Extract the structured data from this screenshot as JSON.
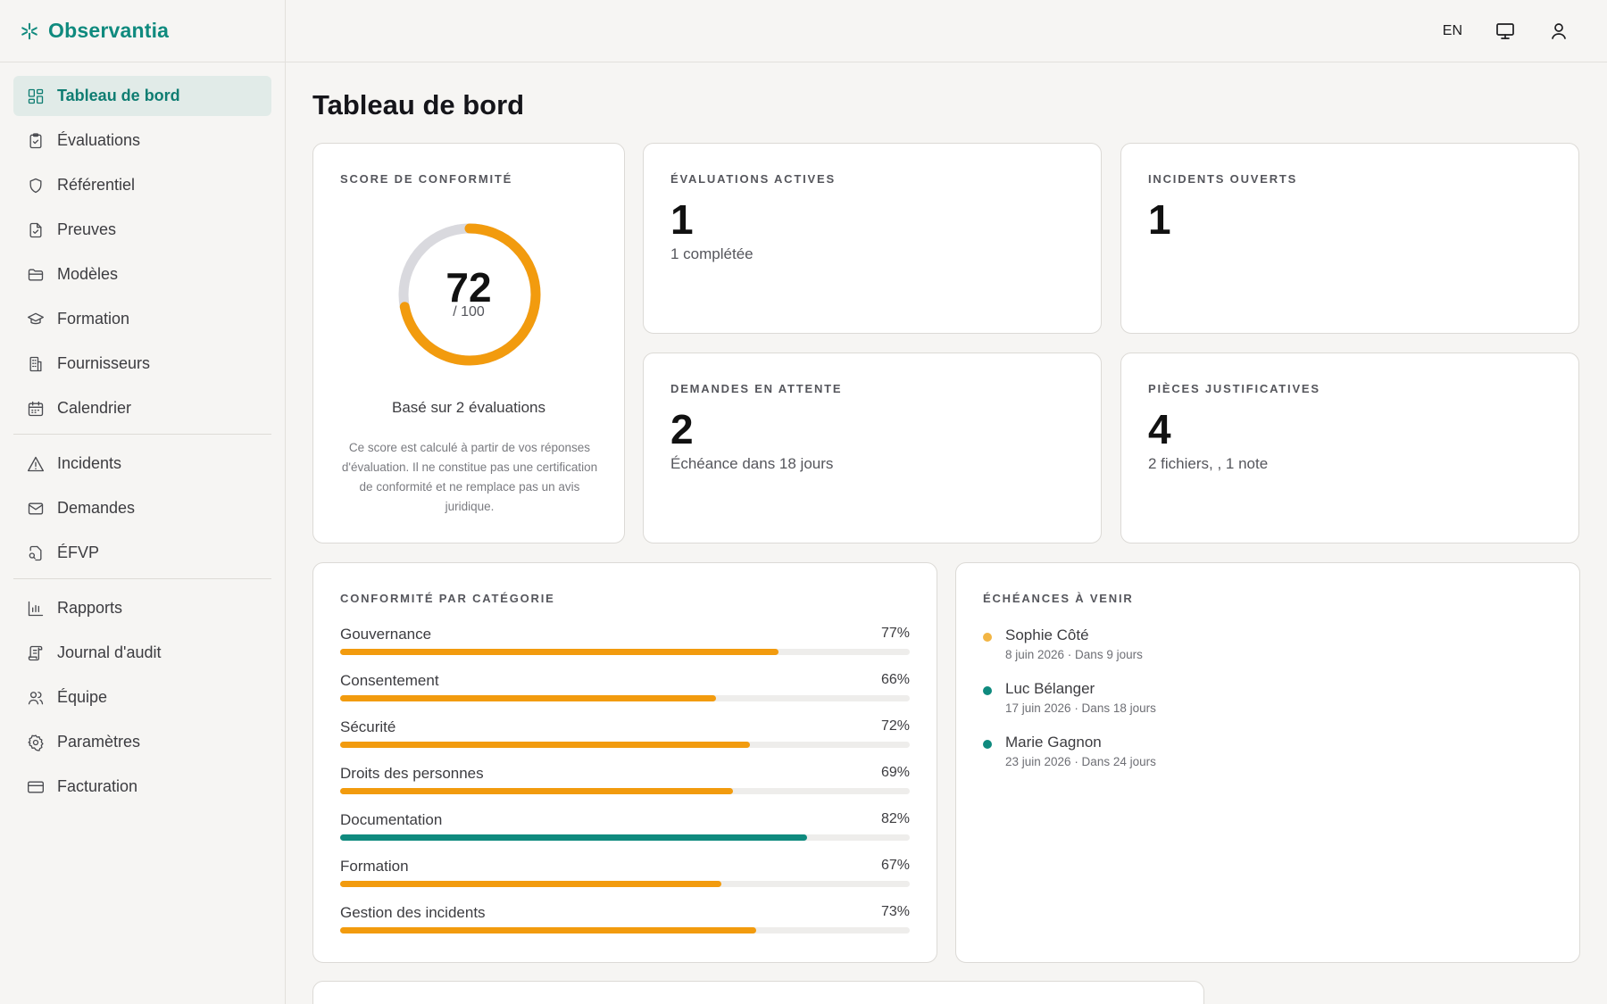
{
  "brand": {
    "name": "Observantia"
  },
  "topbar": {
    "lang": "EN"
  },
  "sidebar": {
    "groups": [
      [
        {
          "label": "Tableau de bord",
          "icon": "dashboard-icon",
          "active": true
        },
        {
          "label": "Évaluations",
          "icon": "clipboard-icon"
        },
        {
          "label": "Référentiel",
          "icon": "shield-icon"
        },
        {
          "label": "Preuves",
          "icon": "file-check-icon"
        },
        {
          "label": "Modèles",
          "icon": "folder-icon"
        },
        {
          "label": "Formation",
          "icon": "graduation-cap-icon"
        },
        {
          "label": "Fournisseurs",
          "icon": "building-icon"
        },
        {
          "label": "Calendrier",
          "icon": "calendar-icon"
        }
      ],
      [
        {
          "label": "Incidents",
          "icon": "warning-icon"
        },
        {
          "label": "Demandes",
          "icon": "mail-icon"
        },
        {
          "label": "ÉFVP",
          "icon": "file-search-icon"
        }
      ],
      [
        {
          "label": "Rapports",
          "icon": "bar-chart-icon"
        },
        {
          "label": "Journal d'audit",
          "icon": "scroll-icon"
        },
        {
          "label": "Équipe",
          "icon": "users-icon"
        },
        {
          "label": "Paramètres",
          "icon": "gear-icon"
        },
        {
          "label": "Facturation",
          "icon": "credit-card-icon"
        }
      ]
    ]
  },
  "page": {
    "title": "Tableau de bord"
  },
  "score": {
    "label": "SCORE DE CONFORMITÉ",
    "value": "72",
    "max": "/ 100",
    "fraction": 0.72,
    "basis": "Basé sur 2 évaluations",
    "note": "Ce score est calculé à partir de vos réponses d'évaluation. Il ne constitue pas une certification de conformité et ne remplace pas un avis juridique."
  },
  "stats": {
    "evaluations": {
      "label": "ÉVALUATIONS ACTIVES",
      "value": "1",
      "sub": "1 complétée"
    },
    "incidents": {
      "label": "INCIDENTS OUVERTS",
      "value": "1"
    },
    "demandes": {
      "label": "DEMANDES EN ATTENTE",
      "value": "2",
      "sub": "Échéance dans 18 jours"
    },
    "pieces": {
      "label": "PIÈCES JUSTIFICATIVES",
      "value": "4",
      "sub": "2 fichiers, , 1 note"
    }
  },
  "categories": {
    "label": "CONFORMITÉ PAR CATÉGORIE",
    "items": [
      {
        "name": "Gouvernance",
        "pct": "77%",
        "value": 77
      },
      {
        "name": "Consentement",
        "pct": "66%",
        "value": 66
      },
      {
        "name": "Sécurité",
        "pct": "72%",
        "value": 72
      },
      {
        "name": "Droits des personnes",
        "pct": "69%",
        "value": 69
      },
      {
        "name": "Documentation",
        "pct": "82%",
        "value": 82
      },
      {
        "name": "Formation",
        "pct": "67%",
        "value": 67
      },
      {
        "name": "Gestion des incidents",
        "pct": "73%",
        "value": 73
      }
    ]
  },
  "deadlines": {
    "label": "ÉCHÉANCES À VENIR",
    "items": [
      {
        "name": "Sophie Côté",
        "meta": "8 juin 2026 · Dans 9 jours",
        "color": "#f2b544"
      },
      {
        "name": "Luc Bélanger",
        "meta": "17 juin 2026 · Dans 18 jours",
        "color": "#0f8a7e"
      },
      {
        "name": "Marie Gagnon",
        "meta": "23 juin 2026 · Dans 24 jours",
        "color": "#0f8a7e"
      }
    ]
  },
  "colors": {
    "accent": "#0f8a7e",
    "warning": "#f29b0e",
    "track": "#d9d9de"
  }
}
